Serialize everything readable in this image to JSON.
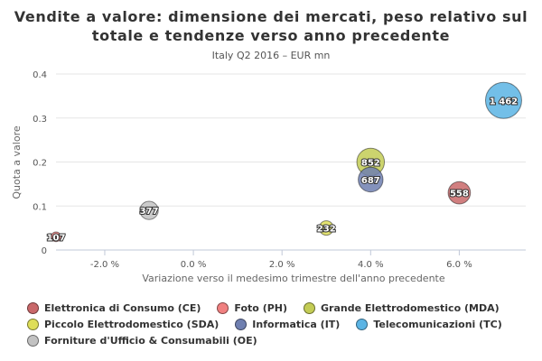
{
  "chart_data": {
    "type": "scatter",
    "title": "Vendite a valore: dimensione dei mercati, peso relativo sul totale e tendenze verso anno precedente",
    "subtitle": "Italy Q2 2016 – EUR mn",
    "xlabel": "Variazione verso il medesimo trimestre dell'anno precedente",
    "ylabel": "Quota a valore",
    "x_ticks": [
      "-2.0 %",
      "0.0 %",
      "2.0 %",
      "4.0 %",
      "6.0 %"
    ],
    "x_tick_values": [
      -0.02,
      0.0,
      0.02,
      0.04,
      0.06
    ],
    "y_ticks": [
      "0",
      "0.1",
      "0.2",
      "0.3",
      "0.4"
    ],
    "y_tick_values": [
      0,
      0.1,
      0.2,
      0.3,
      0.4
    ],
    "xlim": [
      -0.031,
      0.075
    ],
    "ylim": [
      0,
      0.4
    ],
    "grid": "horizontal",
    "legend_position": "bottom",
    "series": [
      {
        "name": "Elettronica di Consumo (CE)",
        "color": "#c9686a",
        "x": 0.06,
        "y": 0.13,
        "size": 558,
        "label": "558"
      },
      {
        "name": "Foto (PH)",
        "color": "#f08080",
        "x": -0.031,
        "y": 0.03,
        "size": 107,
        "label": "107"
      },
      {
        "name": "Grande Elettrodomestico (MDA)",
        "color": "#c3cc55",
        "x": 0.04,
        "y": 0.2,
        "size": 852,
        "label": "852"
      },
      {
        "name": "Piccolo Elettrodomestico (SDA)",
        "color": "#dede58",
        "x": 0.03,
        "y": 0.05,
        "size": 232,
        "label": "232"
      },
      {
        "name": "Informatica (IT)",
        "color": "#6f7fb0",
        "x": 0.04,
        "y": 0.16,
        "size": 687,
        "label": "687"
      },
      {
        "name": "Telecomunicazioni (TC)",
        "color": "#5bb4e4",
        "x": 0.07,
        "y": 0.34,
        "size": 1462,
        "label": "1 462"
      },
      {
        "name": "Forniture d'Ufficio & Consumabili (OE)",
        "color": "#c2c2c2",
        "x": -0.01,
        "y": 0.09,
        "size": 377,
        "label": "377"
      }
    ]
  }
}
